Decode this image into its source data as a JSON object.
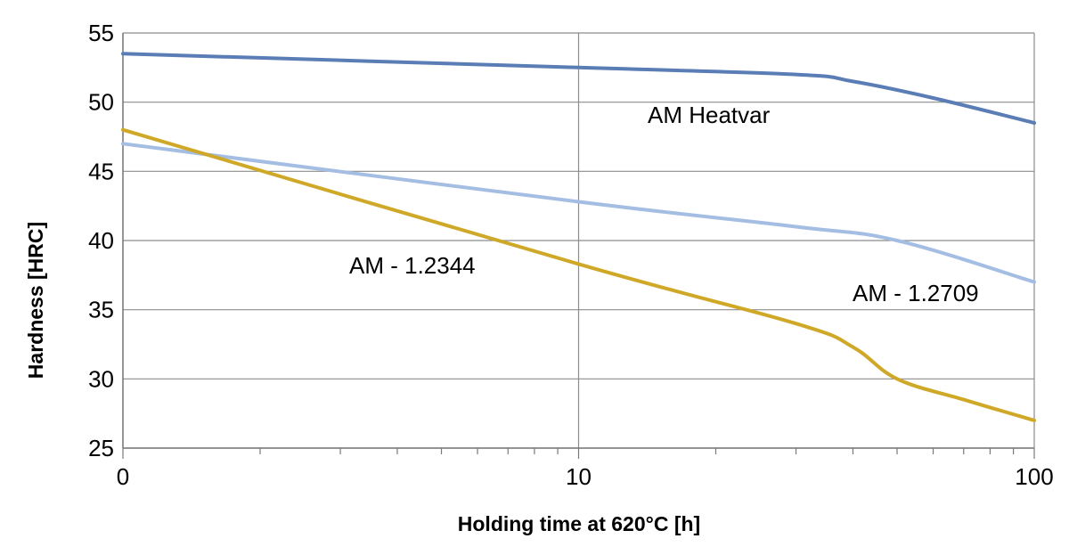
{
  "chart_data": {
    "type": "line",
    "title": "",
    "xlabel": "Holding time at 620°C [h]",
    "ylabel": "Hardness [HRC]",
    "x_scale": "log",
    "x_tick_labels": [
      "0",
      "10",
      "100"
    ],
    "y_ticks": [
      25,
      30,
      35,
      40,
      45,
      50,
      55
    ],
    "ylim": [
      25,
      55
    ],
    "grid": true,
    "series": [
      {
        "name": "AM Heatvar",
        "color": "#5b7db5",
        "points": [
          {
            "x": "0",
            "y": 53.5
          },
          {
            "x": "10",
            "y": 52.5
          },
          {
            "x": "30",
            "y": 52.0
          },
          {
            "x": "40",
            "y": 51.5
          },
          {
            "x": "60",
            "y": 50.3
          },
          {
            "x": "100",
            "y": 48.5
          }
        ]
      },
      {
        "name": "AM - 1.2709",
        "color": "#a4bde3",
        "points": [
          {
            "x": "0",
            "y": 47.0
          },
          {
            "x": "10",
            "y": 42.8
          },
          {
            "x": "30",
            "y": 41.0
          },
          {
            "x": "50",
            "y": 40.0
          },
          {
            "x": "100",
            "y": 37.0
          }
        ]
      },
      {
        "name": "AM - 1.2344",
        "color": "#cfa828",
        "points": [
          {
            "x": "0",
            "y": 48.0
          },
          {
            "x": "10",
            "y": 38.3
          },
          {
            "x": "30",
            "y": 34.0
          },
          {
            "x": "40",
            "y": 32.3
          },
          {
            "x": "50",
            "y": 30.0
          },
          {
            "x": "70",
            "y": 28.5
          },
          {
            "x": "100",
            "y": 27.0
          }
        ]
      }
    ]
  }
}
